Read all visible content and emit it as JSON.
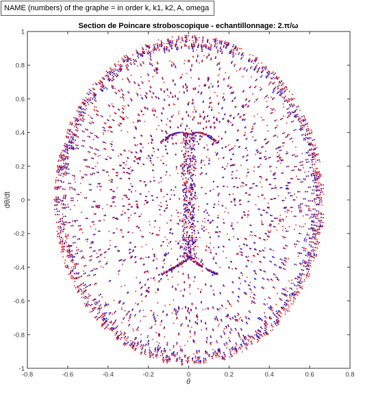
{
  "window": {
    "name_box_text": "NAME (numbers) of the graphe = in order k, k1, k2, A, omega"
  },
  "chart_data": {
    "type": "scatter",
    "title": "Section de Poincare stroboscopique  - echantillonnage: 2.π/ω",
    "xlabel": "θ",
    "ylabel": "dθ/dt",
    "xlim": [
      -0.8,
      0.8
    ],
    "ylim": [
      -1,
      1
    ],
    "xticks": [
      "-0.8",
      "-0.6",
      "-0.4",
      "-0.2",
      "0",
      "0.2",
      "0.4",
      "0.6",
      "0.8"
    ],
    "yticks": [
      "-1",
      "-0.8",
      "-0.6",
      "-0.4",
      "-0.2",
      "0",
      "0.2",
      "0.4",
      "0.6",
      "0.8",
      "1"
    ],
    "grid": false,
    "marker": "point",
    "colors": {
      "series_blue": "#1f1fd6",
      "series_red": "#e31a1a",
      "axes": "#333333"
    },
    "series": [
      {
        "color": "red",
        "region": {
          "shape": "ellipse",
          "center": [
            0,
            0
          ],
          "x_radius": 0.67,
          "y_radius": 0.98,
          "edge_density": "high",
          "central_vertical_band_x": [
            -0.03,
            0.03
          ],
          "central_band_y": [
            -0.35,
            0.4
          ]
        },
        "approx_point_count": 9000
      },
      {
        "color": "blue",
        "region": {
          "shape": "ellipse",
          "center": [
            0,
            0
          ],
          "x_radius": 0.66,
          "y_radius": 0.97,
          "edge_density": "high",
          "central_vertical_band_x": [
            -0.03,
            0.03
          ],
          "central_band_y": [
            -0.35,
            0.4
          ]
        },
        "approx_point_count": 9000
      }
    ]
  }
}
